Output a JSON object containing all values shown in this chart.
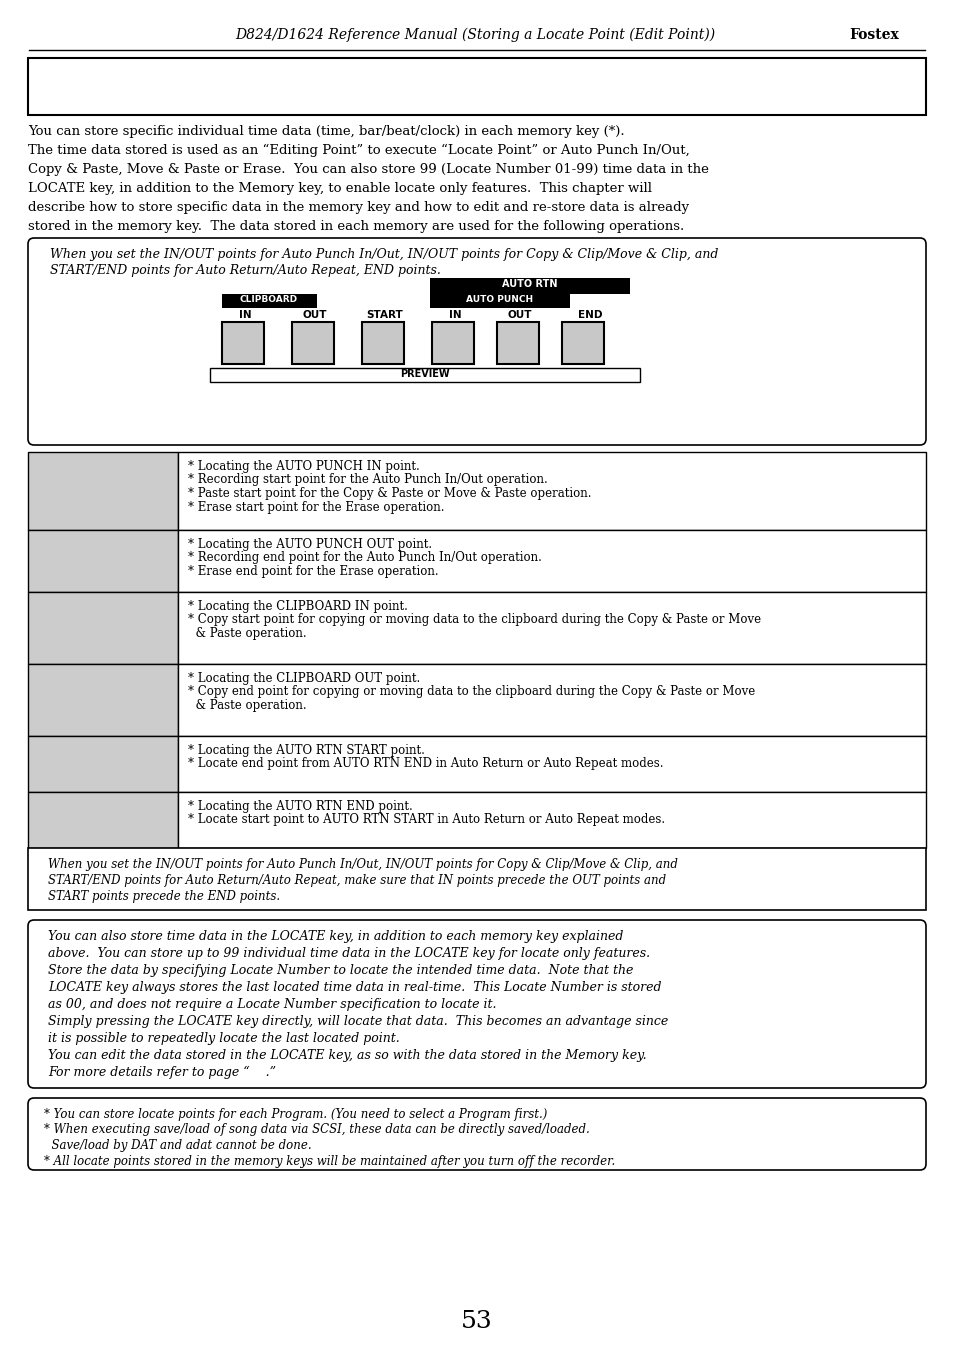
{
  "title_italic": "D824/D1624 Reference Manual (Storing a Locate Point (Edit Point)) ",
  "title_bold": "Fostex",
  "page_number": "53",
  "intro_lines": [
    "You can store specific individual time data (time, bar/beat/clock) in each memory key (*).",
    "The time data stored is used as an “Editing Point” to execute “Locate Point” or Auto Punch In/Out,",
    "Copy & Paste, Move & Paste or Erase.  You can also store 99 (Locate Number 01-99) time data in the",
    "LOCATE key, in addition to the Memory key, to enable locate only features.  This chapter will",
    "describe how to store specific data in the memory key and how to edit and re-store data is already",
    "stored in the memory key.  The data stored in each memory are used for the following operations."
  ],
  "note1_lines": [
    "When you set the IN/OUT points for Auto Punch In/Out, IN/OUT points for Copy & Clip/Move & Clip, and",
    "START/END points for Auto Return/Auto Repeat, END points."
  ],
  "table_rows": [
    [
      "* Locating the AUTO PUNCH IN point.",
      "* Recording start point for the Auto Punch In/Out operation.",
      "* Paste start point for the Copy & Paste or Move & Paste operation.",
      "* Erase start point for the Erase operation."
    ],
    [
      "* Locating the AUTO PUNCH OUT point.",
      "* Recording end point for the Auto Punch In/Out operation.",
      "* Erase end point for the Erase operation."
    ],
    [
      "* Locating the CLIPBOARD IN point.",
      "* Copy start point for copying or moving data to the clipboard during the Copy & Paste or Move",
      "  & Paste operation."
    ],
    [
      "* Locating the CLIPBOARD OUT point.",
      "* Copy end point for copying or moving data to the clipboard during the Copy & Paste or Move",
      "  & Paste operation."
    ],
    [
      "* Locating the AUTO RTN START point.",
      "* Locate end point from AUTO RTN END in Auto Return or Auto Repeat modes."
    ],
    [
      "* Locating the AUTO RTN END point.",
      "* Locate start point to AUTO RTN START in Auto Return or Auto Repeat modes."
    ]
  ],
  "note2_lines": [
    "When you set the IN/OUT points for Auto Punch In/Out, IN/OUT points for Copy & Clip/Move & Clip, and",
    "START/END points for Auto Return/Auto Repeat, make sure that IN points precede the OUT points and",
    "START points precede the END points."
  ],
  "locate_lines": [
    "You can also store time data in the LOCATE key, in addition to each memory key explained",
    "above.  You can store up to 99 individual time data in the LOCATE key for locate only features.",
    "Store the data by specifying Locate Number to locate the intended time data.  Note that the",
    "LOCATE key always stores the last located time data in real-time.  This Locate Number is stored",
    "as 00, and does not require a Locate Number specification to locate it.",
    "Simply pressing the LOCATE key directly, will locate that data.  This becomes an advantage since",
    "it is possible to repeatedly locate the last located point.",
    "You can edit the data stored in the LOCATE key, as so with the data stored in the Memory key.",
    "For more details refer to page “    .”"
  ],
  "footer_lines": [
    "* You can store locate points for each Program. (You need to select a Program first.)",
    "* When executing save/load of song data via SCSI, these data can be directly saved/loaded.",
    "  Save/load by DAT and adat cannot be done.",
    "* All locate points stored in the memory keys will be maintained after you turn off the recorder."
  ],
  "bg_color": "#ffffff",
  "gray_cell": "#cccccc",
  "black": "#000000"
}
